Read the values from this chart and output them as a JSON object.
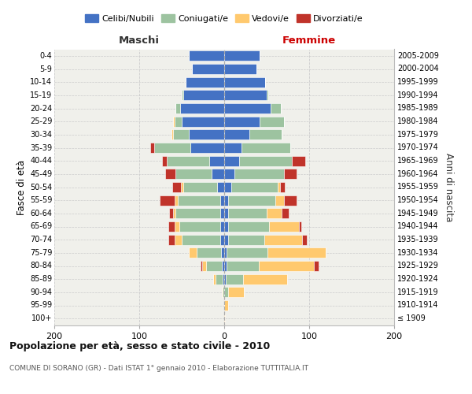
{
  "age_groups": [
    "100+",
    "95-99",
    "90-94",
    "85-89",
    "80-84",
    "75-79",
    "70-74",
    "65-69",
    "60-64",
    "55-59",
    "50-54",
    "45-49",
    "40-44",
    "35-39",
    "30-34",
    "25-29",
    "20-24",
    "15-19",
    "10-14",
    "5-9",
    "0-4"
  ],
  "birth_years": [
    "≤ 1909",
    "1910-1914",
    "1915-1919",
    "1920-1924",
    "1925-1929",
    "1930-1934",
    "1935-1939",
    "1940-1944",
    "1945-1949",
    "1950-1954",
    "1955-1959",
    "1960-1964",
    "1965-1969",
    "1970-1974",
    "1975-1979",
    "1980-1984",
    "1985-1989",
    "1990-1994",
    "1995-1999",
    "2000-2004",
    "2005-2009"
  ],
  "maschi_celibi": [
    0,
    0,
    0,
    2,
    3,
    4,
    5,
    5,
    5,
    5,
    8,
    15,
    18,
    40,
    42,
    50,
    52,
    48,
    45,
    38,
    42
  ],
  "maschi_coniugati": [
    0,
    0,
    2,
    8,
    18,
    28,
    45,
    48,
    52,
    50,
    40,
    42,
    50,
    42,
    18,
    8,
    5,
    2,
    0,
    0,
    0
  ],
  "maschi_vedovi": [
    0,
    0,
    1,
    3,
    5,
    10,
    8,
    5,
    3,
    3,
    3,
    0,
    0,
    0,
    2,
    2,
    0,
    0,
    0,
    0,
    0
  ],
  "maschi_divorziati": [
    0,
    0,
    0,
    0,
    2,
    0,
    8,
    8,
    5,
    18,
    10,
    12,
    5,
    5,
    0,
    0,
    0,
    0,
    0,
    0,
    0
  ],
  "femmine_celibi": [
    0,
    0,
    0,
    2,
    3,
    3,
    5,
    5,
    5,
    5,
    8,
    12,
    18,
    20,
    30,
    42,
    55,
    50,
    48,
    38,
    42
  ],
  "femmine_coniugati": [
    0,
    0,
    5,
    20,
    38,
    48,
    42,
    48,
    45,
    55,
    55,
    58,
    62,
    58,
    38,
    28,
    12,
    2,
    0,
    0,
    0
  ],
  "femmine_vedovi": [
    1,
    5,
    18,
    52,
    65,
    68,
    45,
    35,
    18,
    10,
    3,
    0,
    0,
    0,
    0,
    0,
    0,
    0,
    0,
    0,
    0
  ],
  "femmine_divorziati": [
    0,
    0,
    0,
    0,
    5,
    0,
    5,
    3,
    8,
    15,
    5,
    15,
    15,
    0,
    0,
    0,
    0,
    0,
    0,
    0,
    0
  ],
  "color_celibi": "#4472c4",
  "color_coniugati": "#9dc3a0",
  "color_vedovi": "#ffc96e",
  "color_divorziati": "#c0332a",
  "title": "Popolazione per età, sesso e stato civile - 2010",
  "subtitle": "COMUNE DI SORANO (GR) - Dati ISTAT 1° gennaio 2010 - Elaborazione TUTTITALIA.IT",
  "label_maschi": "Maschi",
  "label_femmine": "Femmine",
  "ylabel_left": "Fasce di età",
  "ylabel_right": "Anni di nascita",
  "xlim": 200,
  "bg_color": "#f0f0eb",
  "legend_labels": [
    "Celibi/Nubili",
    "Coniugati/e",
    "Vedovi/e",
    "Divorziati/e"
  ],
  "bar_height": 0.78
}
